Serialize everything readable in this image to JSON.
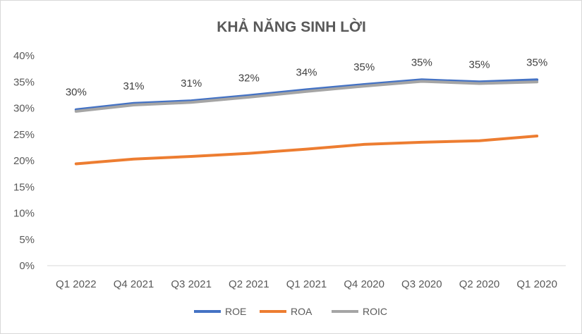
{
  "chart_data": {
    "type": "line",
    "title": "KHẢ NĂNG SINH LỜI",
    "categories": [
      "Q1 2022",
      "Q4 2021",
      "Q3 2021",
      "Q2 2021",
      "Q1 2021",
      "Q4 2020",
      "Q3 2020",
      "Q2 2020",
      "Q1 2020"
    ],
    "ylim": [
      0,
      40
    ],
    "yticks": [
      "0%",
      "5%",
      "10%",
      "15%",
      "20%",
      "25%",
      "30%",
      "35%",
      "40%"
    ],
    "grid": false,
    "legend": "bottom",
    "series": [
      {
        "name": "ROE",
        "color": "#4472c4",
        "values": [
          29.7,
          30.9,
          31.4,
          32.4,
          33.5,
          34.5,
          35.4,
          35.0,
          35.4
        ],
        "labels": [
          "30%",
          "31%",
          "31%",
          "32%",
          "34%",
          "35%",
          "35%",
          "35%",
          "35%"
        ]
      },
      {
        "name": "ROA",
        "color": "#ed7d31",
        "values": [
          19.4,
          20.3,
          20.8,
          21.4,
          22.2,
          23.1,
          23.5,
          23.8,
          24.7
        ]
      },
      {
        "name": "ROIC",
        "color": "#a5a5a5",
        "values": [
          29.4,
          30.6,
          31.1,
          32.1,
          33.2,
          34.2,
          35.1,
          34.7,
          35.0
        ]
      }
    ]
  }
}
